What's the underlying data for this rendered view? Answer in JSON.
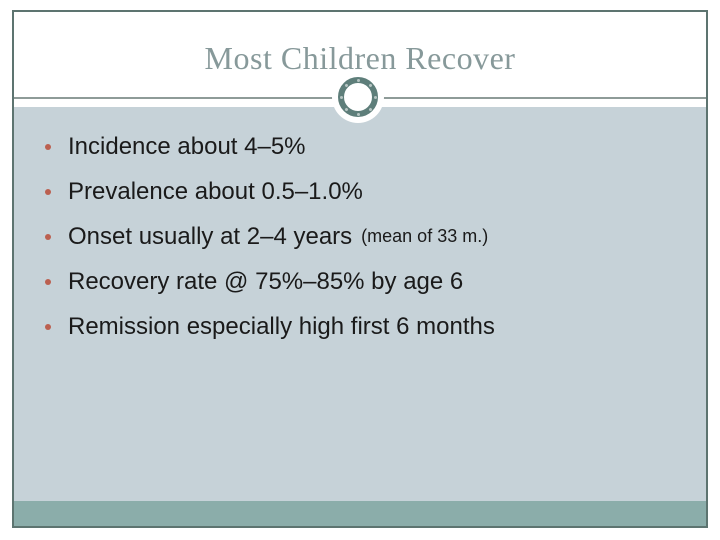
{
  "slide": {
    "title": "Most Children Recover",
    "bullets": [
      {
        "text": "Incidence about 4–5%",
        "note": ""
      },
      {
        "text": "Prevalence about 0.5–1.0%",
        "note": ""
      },
      {
        "text": "Onset usually at 2–4 years",
        "note": "(mean of 33 m.)"
      },
      {
        "text": "Recovery rate @ 75%–85% by age 6",
        "note": ""
      },
      {
        "text": "Remission especially high first 6 months",
        "note": ""
      }
    ],
    "ornament": "notched-circle",
    "colors": {
      "slide_border": "#5d7470",
      "title_text": "#87999a",
      "divider_line": "#8e9b98",
      "ornament_ring": "#5e7e7a",
      "content_bg": "#c6d2d8",
      "footer_bar": "#8badaa",
      "bullet_dot": "#bb6050",
      "body_text": "#1a1a1a"
    }
  }
}
